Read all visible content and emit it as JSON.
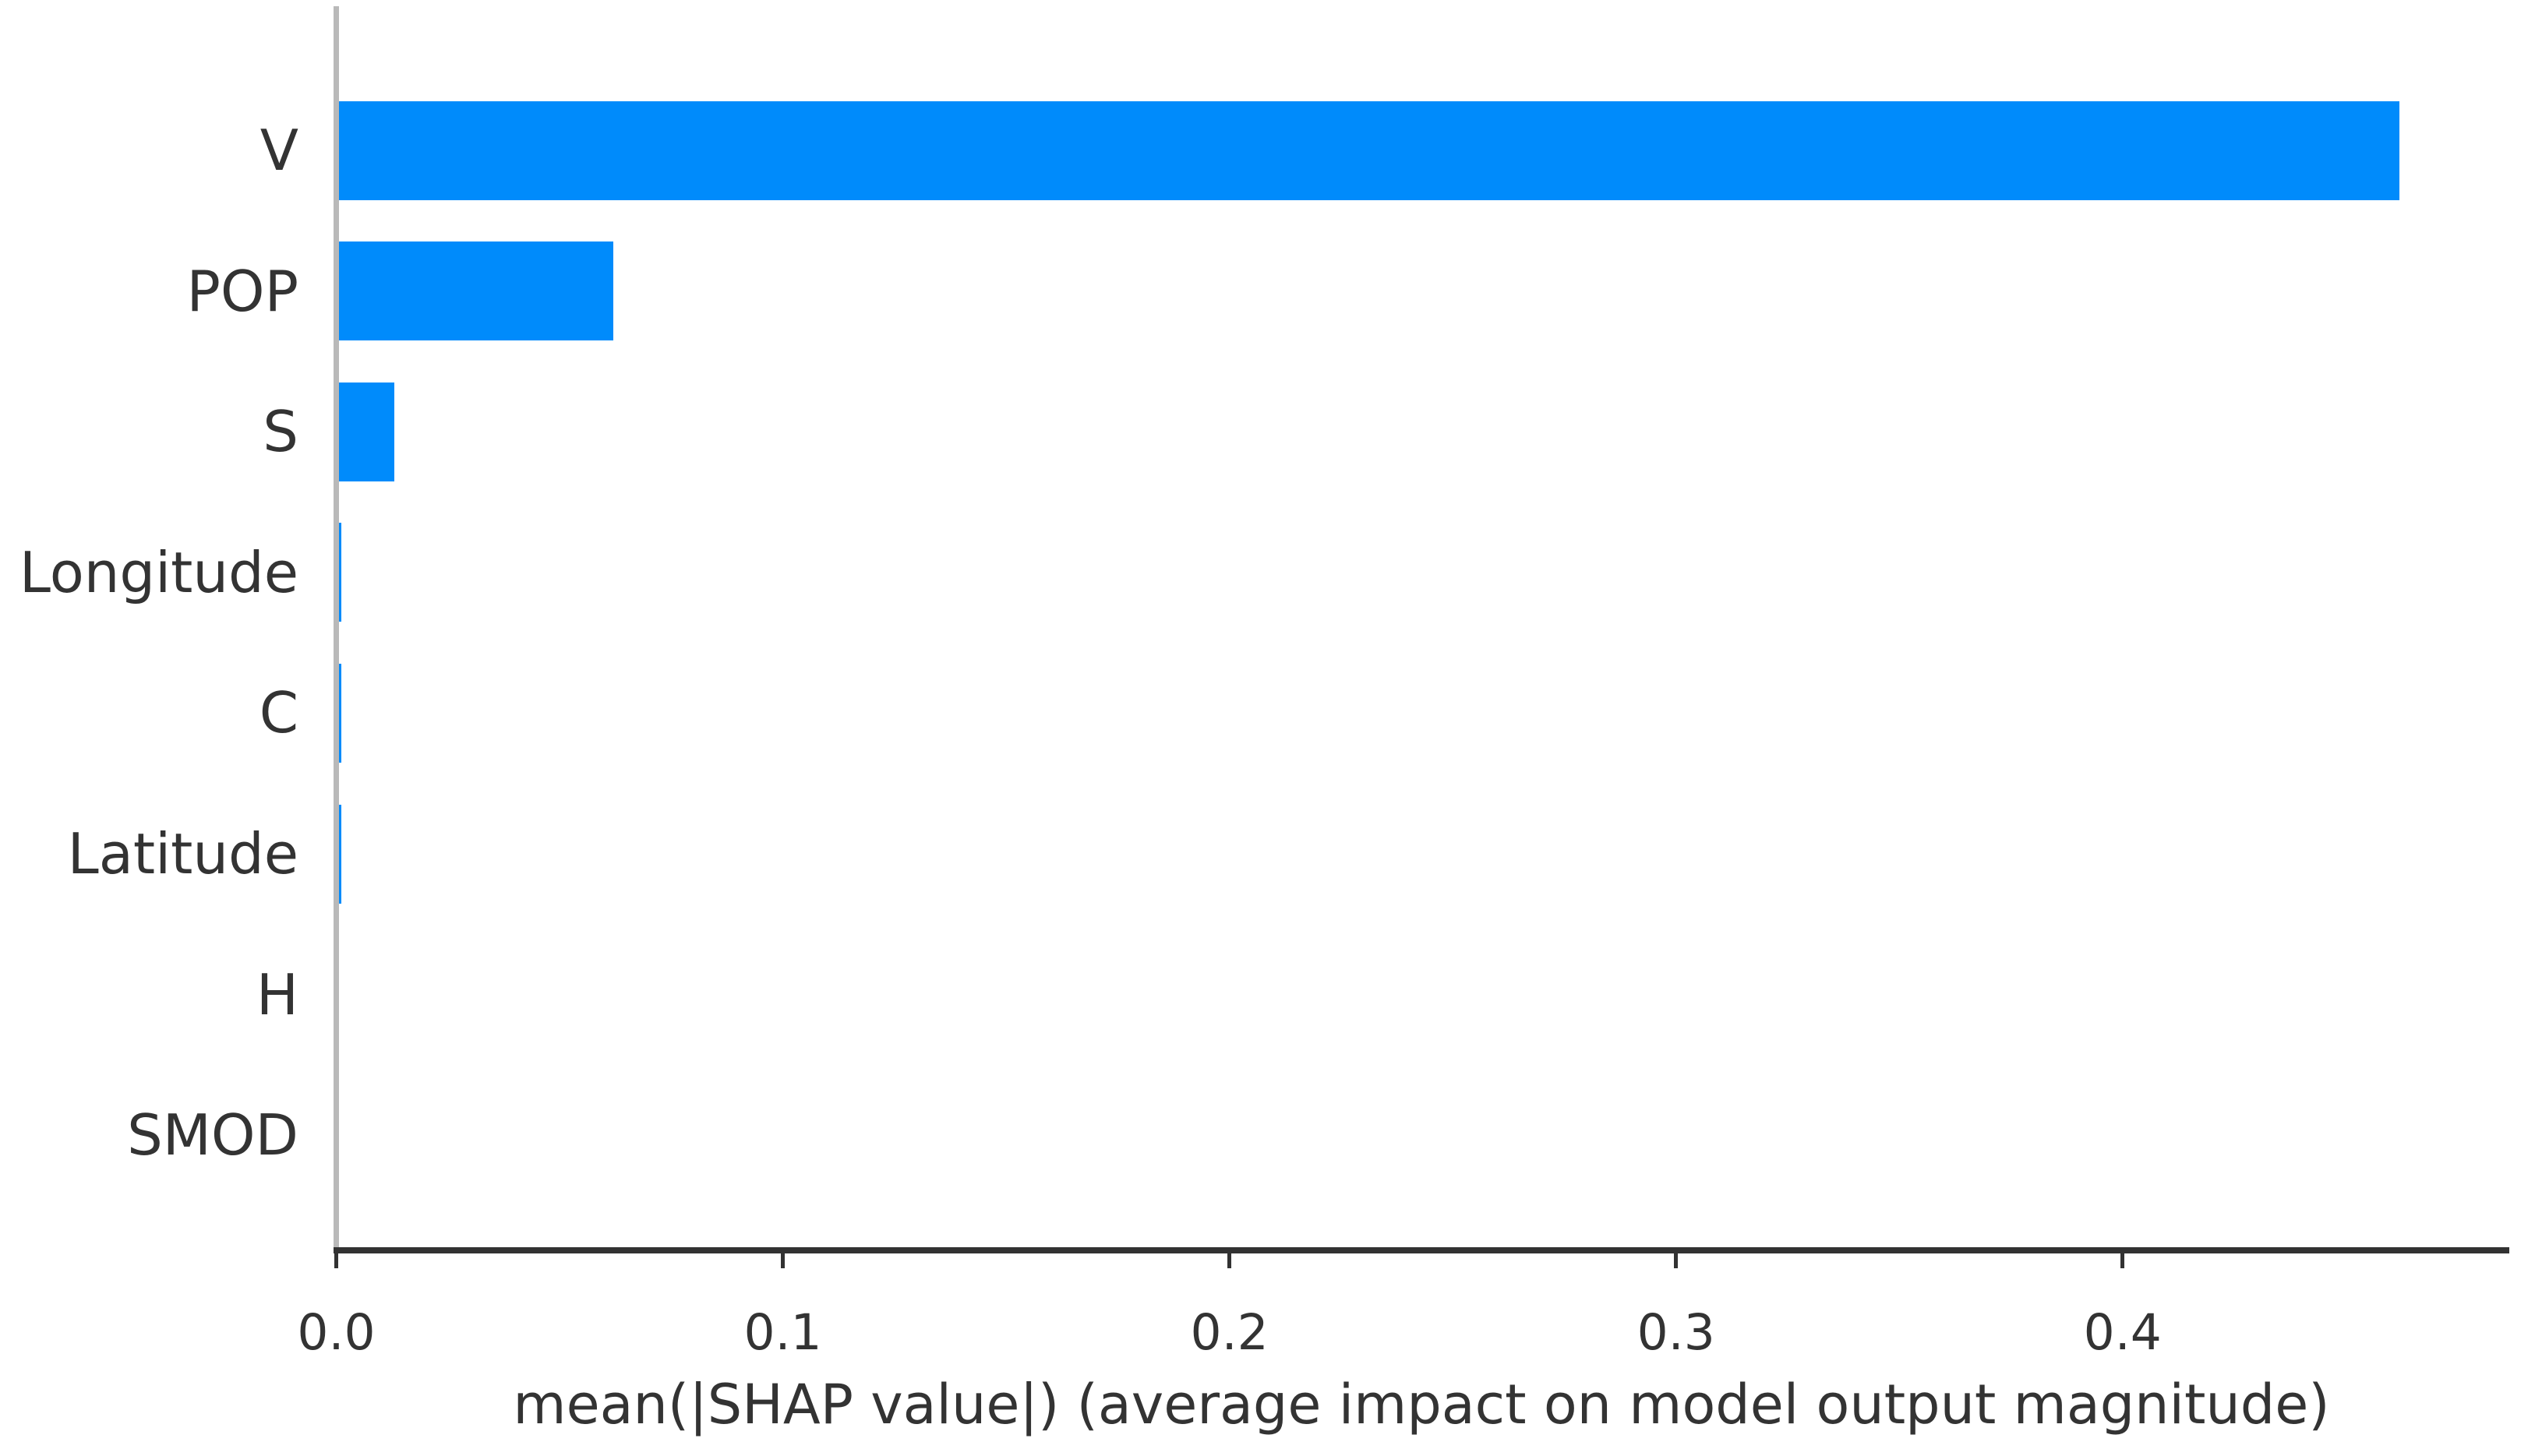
{
  "chart_data": {
    "type": "bar",
    "orientation": "horizontal",
    "title": "",
    "categories": [
      "V",
      "POP",
      "S",
      "Longitude",
      "C",
      "Latitude",
      "H",
      "SMOD"
    ],
    "values": [
      0.462,
      0.062,
      0.013,
      0.0012,
      0.0012,
      0.0011,
      0.0,
      0.0
    ],
    "xlabel": "mean(|SHAP value|) (average impact on model output magnitude)",
    "ylabel": "",
    "x_tick_labels": [
      "0.0",
      "0.1",
      "0.2",
      "0.3",
      "0.4"
    ],
    "x_tick_values": [
      0.0,
      0.1,
      0.2,
      0.3,
      0.4
    ],
    "xlim": [
      0,
      0.4872
    ],
    "grid": false,
    "legend": null,
    "bar_color": "#008bfb",
    "bottom_spine_color": "#323232",
    "left_spine_color": "#b9b9b9",
    "text_color": "#333333"
  }
}
